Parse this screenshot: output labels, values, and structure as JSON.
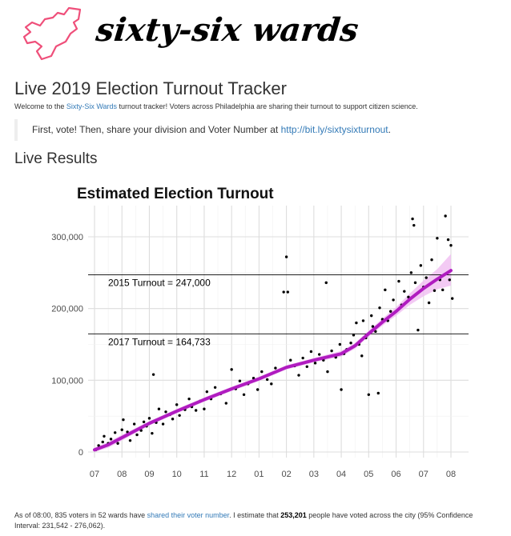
{
  "header": {
    "brand": "sixty-six wards"
  },
  "page": {
    "title": "Live 2019 Election Turnout Tracker",
    "intro_prefix": "Welcome to the ",
    "intro_link": "Sixty-Six Wards",
    "intro_suffix": " turnout tracker! Voters across Philadelphia are sharing their turnout to support citizen science.",
    "callout_prefix": "First, vote! Then, share your division and Voter Number at ",
    "callout_link": "http://bit.ly/sixtysixturnout",
    "callout_suffix": ".",
    "section_title": "Live Results",
    "summary_1": "As of 08:00, 835 voters in 52 wards have ",
    "summary_link": "shared their voter number",
    "summary_2": ". I estimate that ",
    "summary_bold": "253,201",
    "summary_3": " people have voted across the city (95% Confidence Interval: 231,542 - 276,062)."
  },
  "colors": {
    "link": "#337ab7",
    "trend_line": "#b01cc0",
    "confidence_band": "#efb8f0",
    "logo_stroke": "#ef4f7a",
    "points": "#000000"
  },
  "chart_data": {
    "type": "scatter",
    "title": "Estimated Election Turnout",
    "xlabel": "",
    "ylabel": "",
    "x_tick_labels": [
      "07",
      "08",
      "09",
      "10",
      "11",
      "12",
      "01",
      "02",
      "03",
      "04",
      "05",
      "06",
      "07",
      "08"
    ],
    "xlim": [
      7,
      20
    ],
    "ylim": [
      0,
      300000
    ],
    "y_ticks": [
      0,
      100000,
      200000,
      300000
    ],
    "y_tick_labels": [
      "0",
      "100,000",
      "200,000",
      "300,000"
    ],
    "grid": true,
    "reference_lines": [
      {
        "label": "2015 Turnout = 247,000",
        "value": 247000
      },
      {
        "label": "2017 Turnout = 164,733",
        "value": 164733
      }
    ],
    "trend": {
      "x": [
        7.0,
        7.5,
        8.0,
        9.0,
        10.0,
        11.0,
        12.0,
        13.0,
        14.0,
        15.0,
        16.0,
        16.5,
        17.0,
        17.5,
        18.0,
        18.5,
        19.0,
        19.5,
        20.0
      ],
      "y": [
        3000,
        10000,
        20000,
        40000,
        57000,
        73000,
        88000,
        102000,
        118000,
        128000,
        137000,
        148000,
        165000,
        181000,
        196000,
        213000,
        228000,
        241000,
        253000
      ],
      "ci_low": [
        0,
        6000,
        16000,
        37000,
        54000,
        70000,
        85000,
        99000,
        115000,
        125000,
        133000,
        144000,
        161000,
        176000,
        190000,
        205000,
        217000,
        227000,
        232000
      ],
      "ci_high": [
        6000,
        14000,
        24000,
        43000,
        60000,
        76000,
        91000,
        105000,
        121000,
        131000,
        141000,
        152000,
        169000,
        186000,
        202000,
        221000,
        239000,
        255000,
        276000
      ]
    },
    "points": [
      [
        7.05,
        3000
      ],
      [
        7.15,
        9000
      ],
      [
        7.3,
        14000
      ],
      [
        7.35,
        22000
      ],
      [
        7.5,
        12000
      ],
      [
        7.6,
        18000
      ],
      [
        7.75,
        27000
      ],
      [
        7.85,
        12000
      ],
      [
        8.0,
        31000
      ],
      [
        8.05,
        45000
      ],
      [
        8.1,
        22000
      ],
      [
        8.2,
        28000
      ],
      [
        8.3,
        16000
      ],
      [
        8.45,
        39000
      ],
      [
        8.55,
        24000
      ],
      [
        8.7,
        30000
      ],
      [
        8.8,
        42000
      ],
      [
        8.9,
        36000
      ],
      [
        9.0,
        47000
      ],
      [
        9.1,
        26000
      ],
      [
        9.15,
        108000
      ],
      [
        9.25,
        41000
      ],
      [
        9.35,
        60000
      ],
      [
        9.5,
        39000
      ],
      [
        9.6,
        56000
      ],
      [
        9.75,
        52000
      ],
      [
        9.85,
        46000
      ],
      [
        10.0,
        66000
      ],
      [
        10.1,
        51000
      ],
      [
        10.3,
        59000
      ],
      [
        10.45,
        74000
      ],
      [
        10.55,
        63000
      ],
      [
        10.7,
        58000
      ],
      [
        10.85,
        71000
      ],
      [
        11.0,
        60000
      ],
      [
        11.1,
        84000
      ],
      [
        11.25,
        74000
      ],
      [
        11.4,
        90000
      ],
      [
        11.6,
        81000
      ],
      [
        11.8,
        68000
      ],
      [
        12.0,
        115000
      ],
      [
        12.15,
        88000
      ],
      [
        12.3,
        99000
      ],
      [
        12.45,
        80000
      ],
      [
        12.6,
        95000
      ],
      [
        12.8,
        103000
      ],
      [
        12.95,
        87000
      ],
      [
        13.1,
        112000
      ],
      [
        13.3,
        101000
      ],
      [
        13.45,
        95000
      ],
      [
        13.6,
        117000
      ],
      [
        13.75,
        114000
      ],
      [
        13.9,
        223000
      ],
      [
        14.0,
        272000
      ],
      [
        14.05,
        223000
      ],
      [
        14.15,
        128000
      ],
      [
        14.3,
        120000
      ],
      [
        14.45,
        107000
      ],
      [
        14.6,
        131000
      ],
      [
        14.75,
        119000
      ],
      [
        14.9,
        140000
      ],
      [
        15.05,
        124000
      ],
      [
        15.2,
        136000
      ],
      [
        15.35,
        128000
      ],
      [
        15.45,
        236000
      ],
      [
        15.5,
        112000
      ],
      [
        15.65,
        141000
      ],
      [
        15.8,
        132000
      ],
      [
        15.95,
        150000
      ],
      [
        16.0,
        87000
      ],
      [
        16.1,
        137000
      ],
      [
        16.2,
        143000
      ],
      [
        16.35,
        152000
      ],
      [
        16.45,
        163000
      ],
      [
        16.55,
        180000
      ],
      [
        16.65,
        150000
      ],
      [
        16.75,
        134000
      ],
      [
        16.8,
        183000
      ],
      [
        16.9,
        159000
      ],
      [
        17.0,
        80000
      ],
      [
        17.1,
        190000
      ],
      [
        17.15,
        175000
      ],
      [
        17.25,
        168000
      ],
      [
        17.35,
        82000
      ],
      [
        17.4,
        201000
      ],
      [
        17.5,
        185000
      ],
      [
        17.6,
        226000
      ],
      [
        17.7,
        183000
      ],
      [
        17.8,
        196000
      ],
      [
        17.9,
        212000
      ],
      [
        18.0,
        196000
      ],
      [
        18.1,
        238000
      ],
      [
        18.2,
        205000
      ],
      [
        18.3,
        224000
      ],
      [
        18.45,
        216000
      ],
      [
        18.55,
        250000
      ],
      [
        18.6,
        325000
      ],
      [
        18.65,
        316000
      ],
      [
        18.7,
        236000
      ],
      [
        18.8,
        170000
      ],
      [
        18.9,
        260000
      ],
      [
        19.0,
        230000
      ],
      [
        19.1,
        243000
      ],
      [
        19.2,
        208000
      ],
      [
        19.3,
        268000
      ],
      [
        19.4,
        225000
      ],
      [
        19.5,
        298000
      ],
      [
        19.6,
        240000
      ],
      [
        19.7,
        226000
      ],
      [
        19.8,
        329000
      ],
      [
        19.9,
        296000
      ],
      [
        19.95,
        240000
      ],
      [
        20.0,
        288000
      ],
      [
        20.05,
        214000
      ]
    ]
  }
}
